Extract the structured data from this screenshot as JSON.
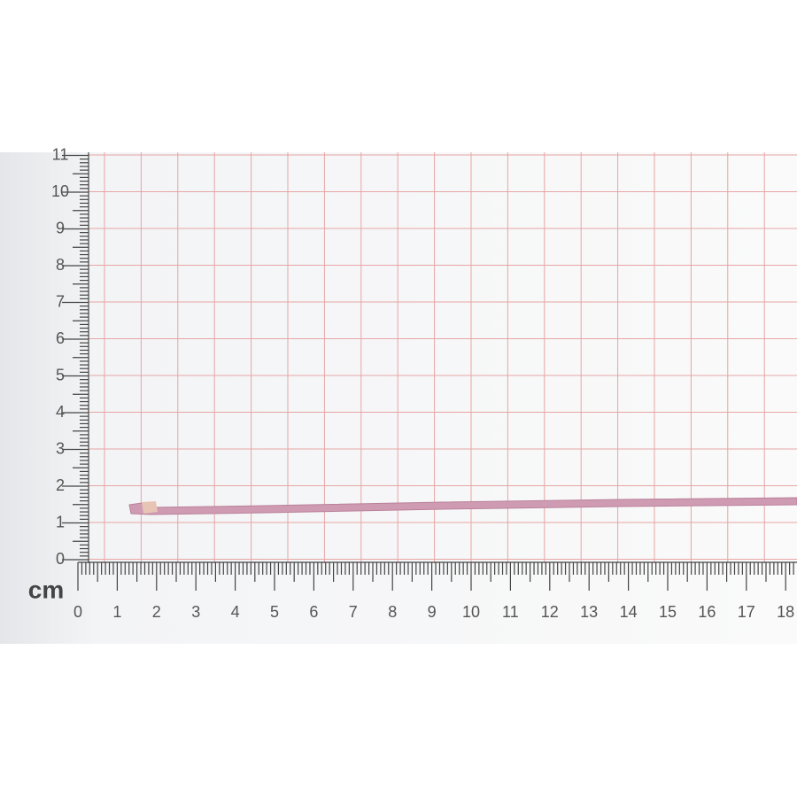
{
  "unit": "cm",
  "x_scale": [
    0,
    1,
    2,
    3,
    4,
    5,
    6,
    7,
    8,
    9,
    10,
    11,
    12,
    13,
    14,
    15,
    16,
    17,
    18
  ],
  "y_scale": [
    0,
    1,
    2,
    3,
    4,
    5,
    6,
    7,
    8,
    9,
    10,
    11
  ]
}
